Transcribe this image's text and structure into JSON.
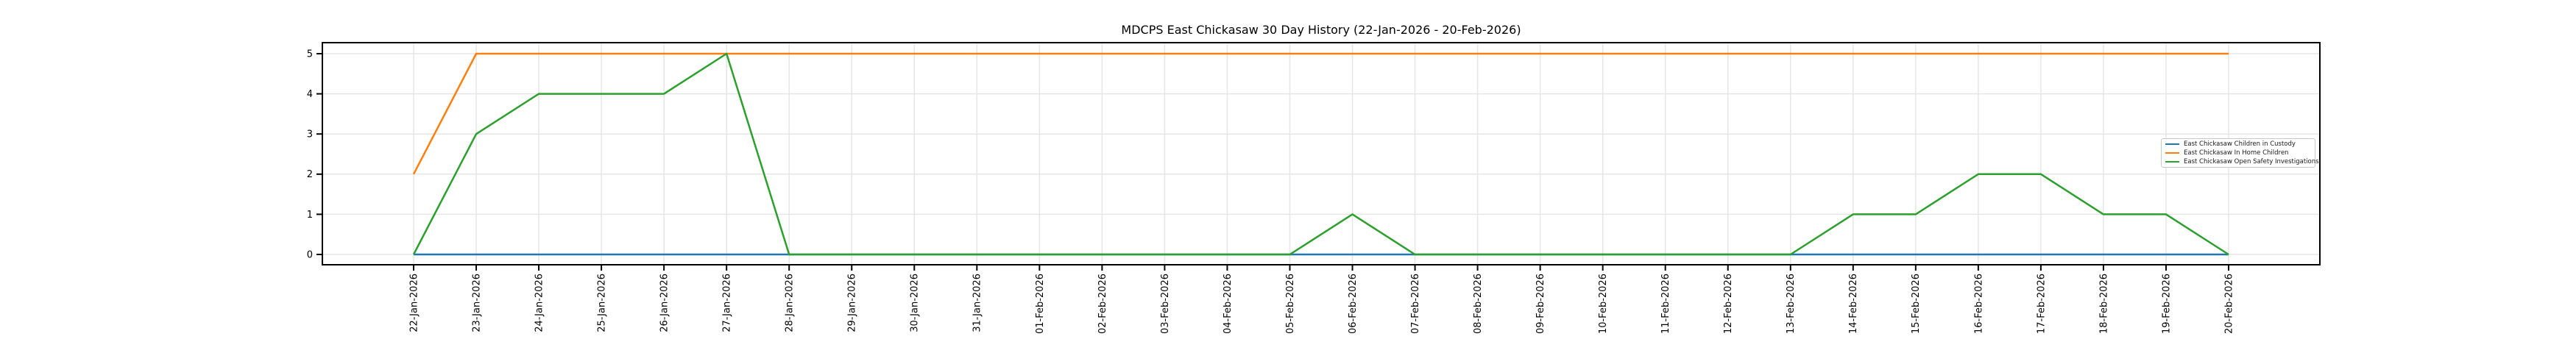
{
  "title": "MDCPS East Chickasaw 30 Day History (22-Jan-2026 - 20-Feb-2026)",
  "colors": {
    "custody_blue": "#1f77b4",
    "in_home_orange": "#ff7f0e",
    "safety_green": "#2ca02c",
    "grid": "#e6e6e6",
    "spine": "#000000",
    "tick_text": "#000000",
    "legend_border": "#c9c9c9",
    "background": "#ffffff"
  },
  "chart_data": {
    "type": "line",
    "title": "MDCPS East Chickasaw 30 Day History (22-Jan-2026 - 20-Feb-2026)",
    "xlabel": "",
    "ylabel": "",
    "grid": true,
    "legend_position": "center right",
    "x_tick_rotation": 90,
    "yticks": [
      0,
      1,
      2,
      3,
      4,
      5
    ],
    "ylim": [
      0,
      5
    ],
    "categories": [
      "22-Jan-2026",
      "23-Jan-2026",
      "24-Jan-2026",
      "25-Jan-2026",
      "26-Jan-2026",
      "27-Jan-2026",
      "28-Jan-2026",
      "29-Jan-2026",
      "30-Jan-2026",
      "31-Jan-2026",
      "01-Feb-2026",
      "02-Feb-2026",
      "03-Feb-2026",
      "04-Feb-2026",
      "05-Feb-2026",
      "06-Feb-2026",
      "07-Feb-2026",
      "08-Feb-2026",
      "09-Feb-2026",
      "10-Feb-2026",
      "11-Feb-2026",
      "12-Feb-2026",
      "13-Feb-2026",
      "14-Feb-2026",
      "15-Feb-2026",
      "16-Feb-2026",
      "17-Feb-2026",
      "18-Feb-2026",
      "19-Feb-2026",
      "20-Feb-2026"
    ],
    "series": [
      {
        "name": "East Chickasaw Children in Custody",
        "color": "#1f77b4",
        "values": [
          0,
          0,
          0,
          0,
          0,
          0,
          0,
          0,
          0,
          0,
          0,
          0,
          0,
          0,
          0,
          0,
          0,
          0,
          0,
          0,
          0,
          0,
          0,
          0,
          0,
          0,
          0,
          0,
          0,
          0
        ]
      },
      {
        "name": "East Chickasaw In Home Children",
        "color": "#ff7f0e",
        "values": [
          2,
          5,
          5,
          5,
          5,
          5,
          5,
          5,
          5,
          5,
          5,
          5,
          5,
          5,
          5,
          5,
          5,
          5,
          5,
          5,
          5,
          5,
          5,
          5,
          5,
          5,
          5,
          5,
          5,
          5
        ]
      },
      {
        "name": "East Chickasaw Open Safety Investigations",
        "color": "#2ca02c",
        "values": [
          0,
          3,
          4,
          4,
          4,
          5,
          0,
          0,
          0,
          0,
          0,
          0,
          0,
          0,
          0,
          1,
          0,
          0,
          0,
          0,
          0,
          0,
          0,
          1,
          1,
          2,
          2,
          1,
          1,
          0
        ]
      }
    ]
  }
}
